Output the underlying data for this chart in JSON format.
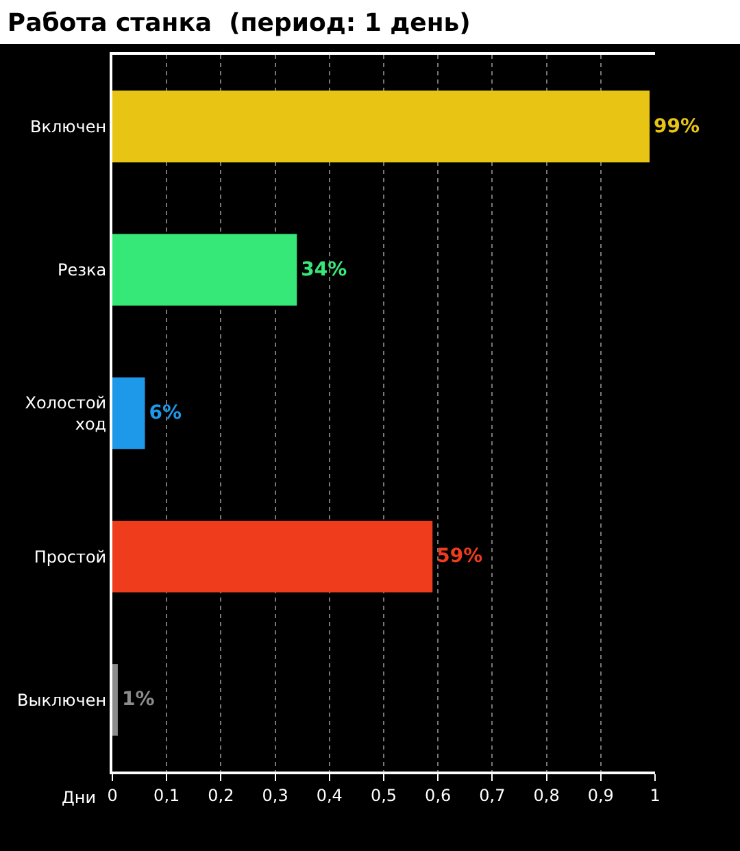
{
  "chart_data": {
    "type": "bar",
    "orientation": "horizontal",
    "title": "Работа станка  (период: 1 день)",
    "xlabel": "Дни",
    "categories": [
      "Включен",
      "Резка",
      "Холостой\nход",
      "Простой",
      "Выключен"
    ],
    "values": [
      0.99,
      0.34,
      0.06,
      0.59,
      0.01
    ],
    "colors": [
      "#e8c414",
      "#36e878",
      "#1e98e8",
      "#ee3c1c",
      "#8c8c8c"
    ],
    "value_labels": [
      "99%",
      "34%",
      "6%",
      "59%",
      "1%"
    ],
    "xlim": [
      0,
      1
    ],
    "xticks": [
      0,
      {
        "value": 0.1,
        "label": "0,1"
      },
      {
        "value": 0.2,
        "label": "0,2"
      },
      {
        "value": 0.3,
        "label": "0,3"
      },
      {
        "value": 0.4,
        "label": "0,4"
      },
      {
        "value": 0.5,
        "label": "0,5"
      },
      {
        "value": 0.6,
        "label": "0,6"
      },
      {
        "value": 0.7,
        "label": "0,7"
      },
      {
        "value": 0.8,
        "label": "0,8"
      },
      {
        "value": 0.9,
        "label": "0,9"
      },
      1
    ],
    "grid": "x"
  }
}
